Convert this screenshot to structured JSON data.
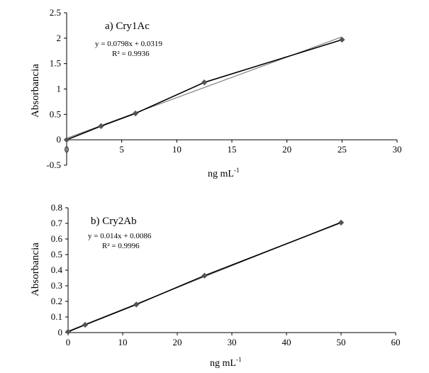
{
  "chart_data": [
    {
      "type": "line",
      "title": "a) Cry1Ac",
      "equation": "y = 0.0798x + 0.0319",
      "r2": "R² = 0.9936",
      "xlabel": "ng mL",
      "xlabel_sup": "-1",
      "ylabel": "Absorbancia",
      "xlim": [
        0,
        30
      ],
      "ylim": [
        -0.5,
        2.5
      ],
      "xticks": [
        "0",
        "5",
        "10",
        "15",
        "20",
        "25",
        "30"
      ],
      "yticks": [
        "2.5",
        "2",
        "1.5",
        "1",
        "0.5",
        "0",
        "-0.5"
      ],
      "series": [
        {
          "x": [
            0,
            3.125,
            6.25,
            12.5,
            25
          ],
          "values": [
            0.0,
            0.27,
            0.52,
            1.13,
            1.97
          ]
        }
      ],
      "trendline": {
        "slope": 0.0798,
        "intercept": 0.0319
      },
      "grid": false
    },
    {
      "type": "line",
      "title": "b) Cry2Ab",
      "equation": "y = 0.014x + 0.0086",
      "r2": "R² = 0.9996",
      "xlabel": "ng mL",
      "xlabel_sup": "-1",
      "ylabel": "Absorbancia",
      "xlim": [
        0,
        60
      ],
      "ylim": [
        0,
        0.8
      ],
      "xticks": [
        "0",
        "10",
        "20",
        "30",
        "40",
        "50",
        "60"
      ],
      "yticks": [
        "0.8",
        "0.7",
        "0.6",
        "0.5",
        "0.4",
        "0.3",
        "0.2",
        "0.1",
        "0"
      ],
      "series": [
        {
          "x": [
            0,
            3.125,
            12.5,
            25,
            50
          ],
          "values": [
            0.005,
            0.05,
            0.18,
            0.365,
            0.705
          ]
        }
      ],
      "trendline": {
        "slope": 0.014,
        "intercept": 0.0086
      },
      "grid": false
    }
  ]
}
